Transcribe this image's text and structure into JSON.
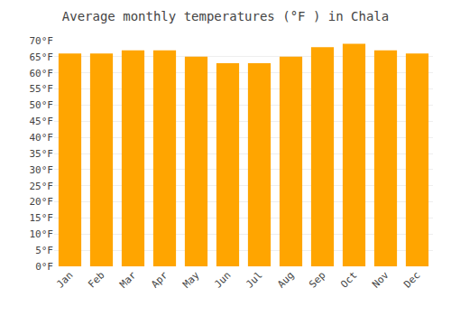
{
  "chart_data": {
    "type": "bar",
    "title": "Average monthly temperatures (°F ) in Chala",
    "categories": [
      "Jan",
      "Feb",
      "Mar",
      "Apr",
      "May",
      "Jun",
      "Jul",
      "Aug",
      "Sep",
      "Oct",
      "Nov",
      "Dec"
    ],
    "values": [
      66,
      66,
      67,
      67,
      65,
      63,
      63,
      65,
      68,
      69,
      67,
      66
    ],
    "color": "#FFA500",
    "ylim": [
      0,
      70
    ],
    "yticks": [
      {
        "value": 0,
        "label": "0°F"
      },
      {
        "value": 5,
        "label": "5°F"
      },
      {
        "value": 10,
        "label": "10°F"
      },
      {
        "value": 15,
        "label": "15°F"
      },
      {
        "value": 20,
        "label": "20°F"
      },
      {
        "value": 25,
        "label": "25°F"
      },
      {
        "value": 30,
        "label": "30°F"
      },
      {
        "value": 35,
        "label": "35°F"
      },
      {
        "value": 40,
        "label": "40°F"
      },
      {
        "value": 45,
        "label": "45°F"
      },
      {
        "value": 50,
        "label": "50°F"
      },
      {
        "value": 55,
        "label": "55°F"
      },
      {
        "value": 60,
        "label": "60°F"
      },
      {
        "value": 65,
        "label": "65°F"
      },
      {
        "value": 70,
        "label": "70°F"
      }
    ],
    "grid": true
  }
}
